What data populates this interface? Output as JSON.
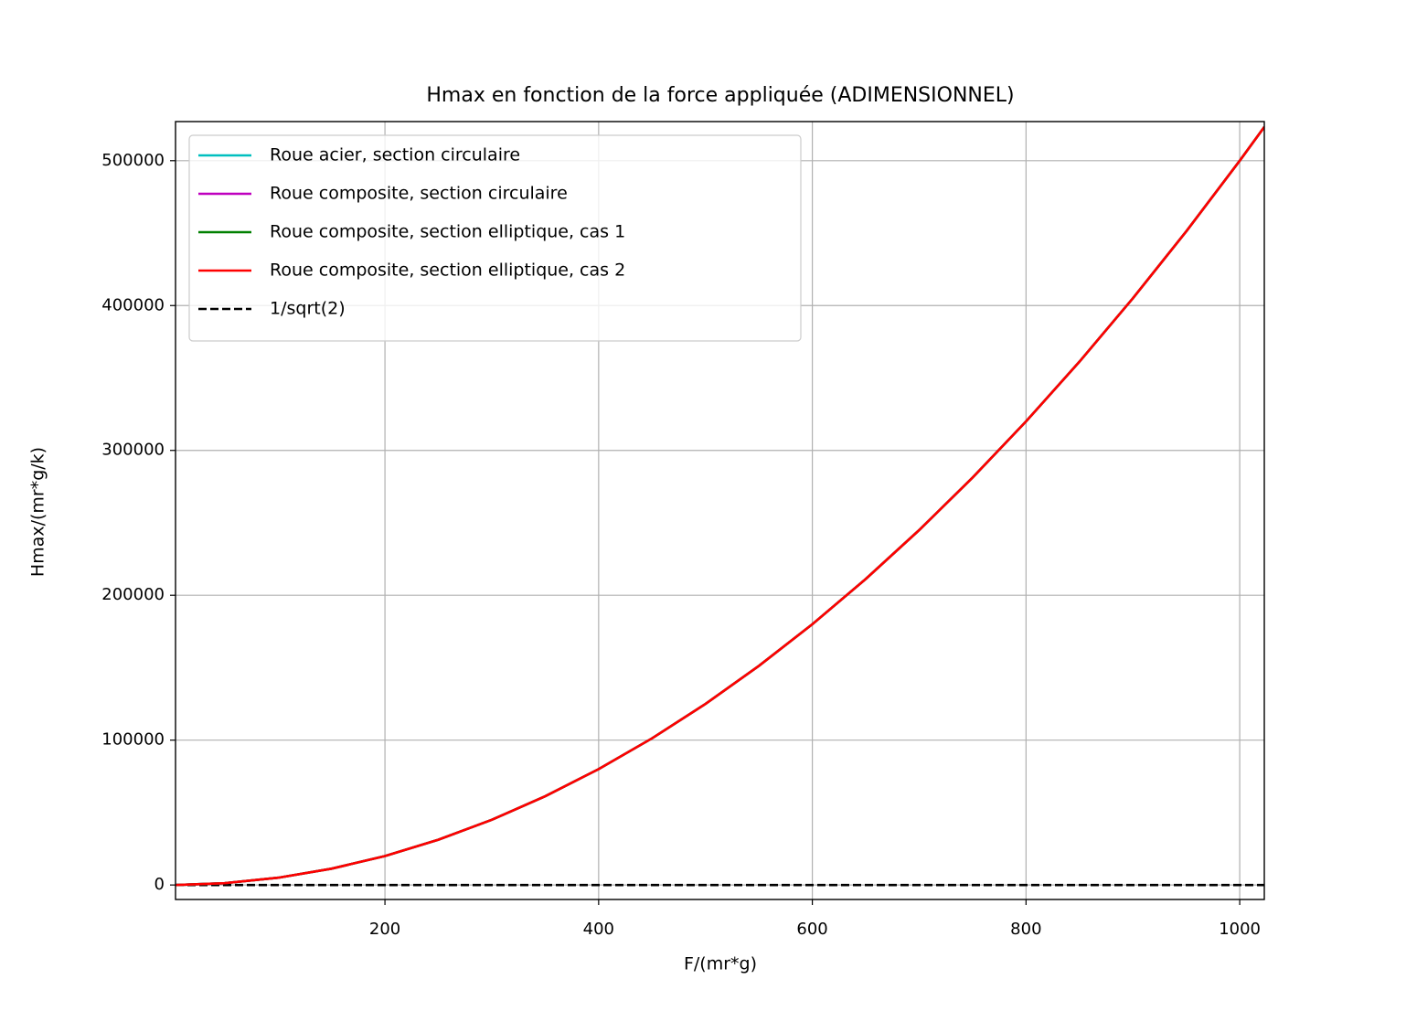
{
  "chart_data": {
    "type": "line",
    "title": "Hmax en fonction de la force appliquée (ADIMENSIONNEL)",
    "xlabel": "F/(mr*g)",
    "ylabel": "Hmax/(mr*g/k)",
    "x": [
      4,
      50,
      100,
      150,
      200,
      250,
      300,
      350,
      400,
      450,
      500,
      550,
      600,
      650,
      700,
      750,
      800,
      850,
      900,
      950,
      1000,
      1023
    ],
    "series": [
      {
        "name": "1/sqrt(2)",
        "color": "#000000",
        "dashed": true,
        "values": [
          0.707,
          0.707,
          0.707,
          0.707,
          0.707,
          0.707,
          0.707,
          0.707,
          0.707,
          0.707,
          0.707,
          0.707,
          0.707,
          0.707,
          0.707,
          0.707,
          0.707,
          0.707,
          0.707,
          0.707,
          0.707,
          0.707
        ]
      },
      {
        "name": "Roue acier, section circulaire",
        "color": "#00bfbf",
        "values": [
          8,
          1250,
          5000,
          11250,
          20000,
          31250,
          45000,
          61250,
          80000,
          101250,
          125000,
          151250,
          180000,
          211250,
          245000,
          281250,
          320000,
          361250,
          405000,
          451250,
          500000,
          523264
        ]
      },
      {
        "name": "Roue composite, section circulaire",
        "color": "#bf00bf",
        "values": [
          8,
          1250,
          5000,
          11250,
          20000,
          31250,
          45000,
          61250,
          80000,
          101250,
          125000,
          151250,
          180000,
          211250,
          245000,
          281250,
          320000,
          361250,
          405000,
          451250,
          500000,
          523264
        ]
      },
      {
        "name": "Roue composite, section elliptique, cas 1",
        "color": "#008000",
        "values": [
          8,
          1250,
          5000,
          11250,
          20000,
          31250,
          45000,
          61250,
          80000,
          101250,
          125000,
          151250,
          180000,
          211250,
          245000,
          281250,
          320000,
          361250,
          405000,
          451250,
          500000,
          523264
        ]
      },
      {
        "name": "Roue composite, section elliptique, cas 2",
        "color": "#ff0000",
        "values": [
          8,
          1250,
          5000,
          11250,
          20000,
          31250,
          45000,
          61250,
          80000,
          101250,
          125000,
          151250,
          180000,
          211250,
          245000,
          281250,
          320000,
          361250,
          405000,
          451250,
          500000,
          523264
        ]
      }
    ],
    "legend_order": [
      1,
      2,
      3,
      4,
      0
    ],
    "xlim": [
      4,
      1023
    ],
    "ylim": [
      -10000,
      527000
    ],
    "xticks": [
      200,
      400,
      600,
      800,
      1000
    ],
    "yticks": [
      0,
      100000,
      200000,
      300000,
      400000,
      500000
    ],
    "grid": true,
    "legend": "upper left"
  }
}
